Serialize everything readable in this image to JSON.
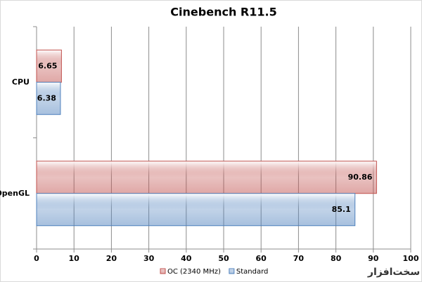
{
  "chart_data": {
    "type": "hbar",
    "title": "Cinebench R11.5",
    "categories": [
      "CPU",
      "OpenGL"
    ],
    "series": [
      {
        "name": "OC (2340 MHz)",
        "color": "#c0504d",
        "values": [
          6.65,
          90.86
        ]
      },
      {
        "name": "Standard",
        "color": "#4f81bd",
        "values": [
          6.38,
          85.1
        ]
      }
    ],
    "xlim": [
      0,
      100
    ],
    "xticks": [
      0,
      10,
      20,
      30,
      40,
      50,
      60,
      70,
      80,
      90,
      100
    ],
    "grid": true,
    "legend": "bottom",
    "watermark": "سخت‌افزار"
  }
}
